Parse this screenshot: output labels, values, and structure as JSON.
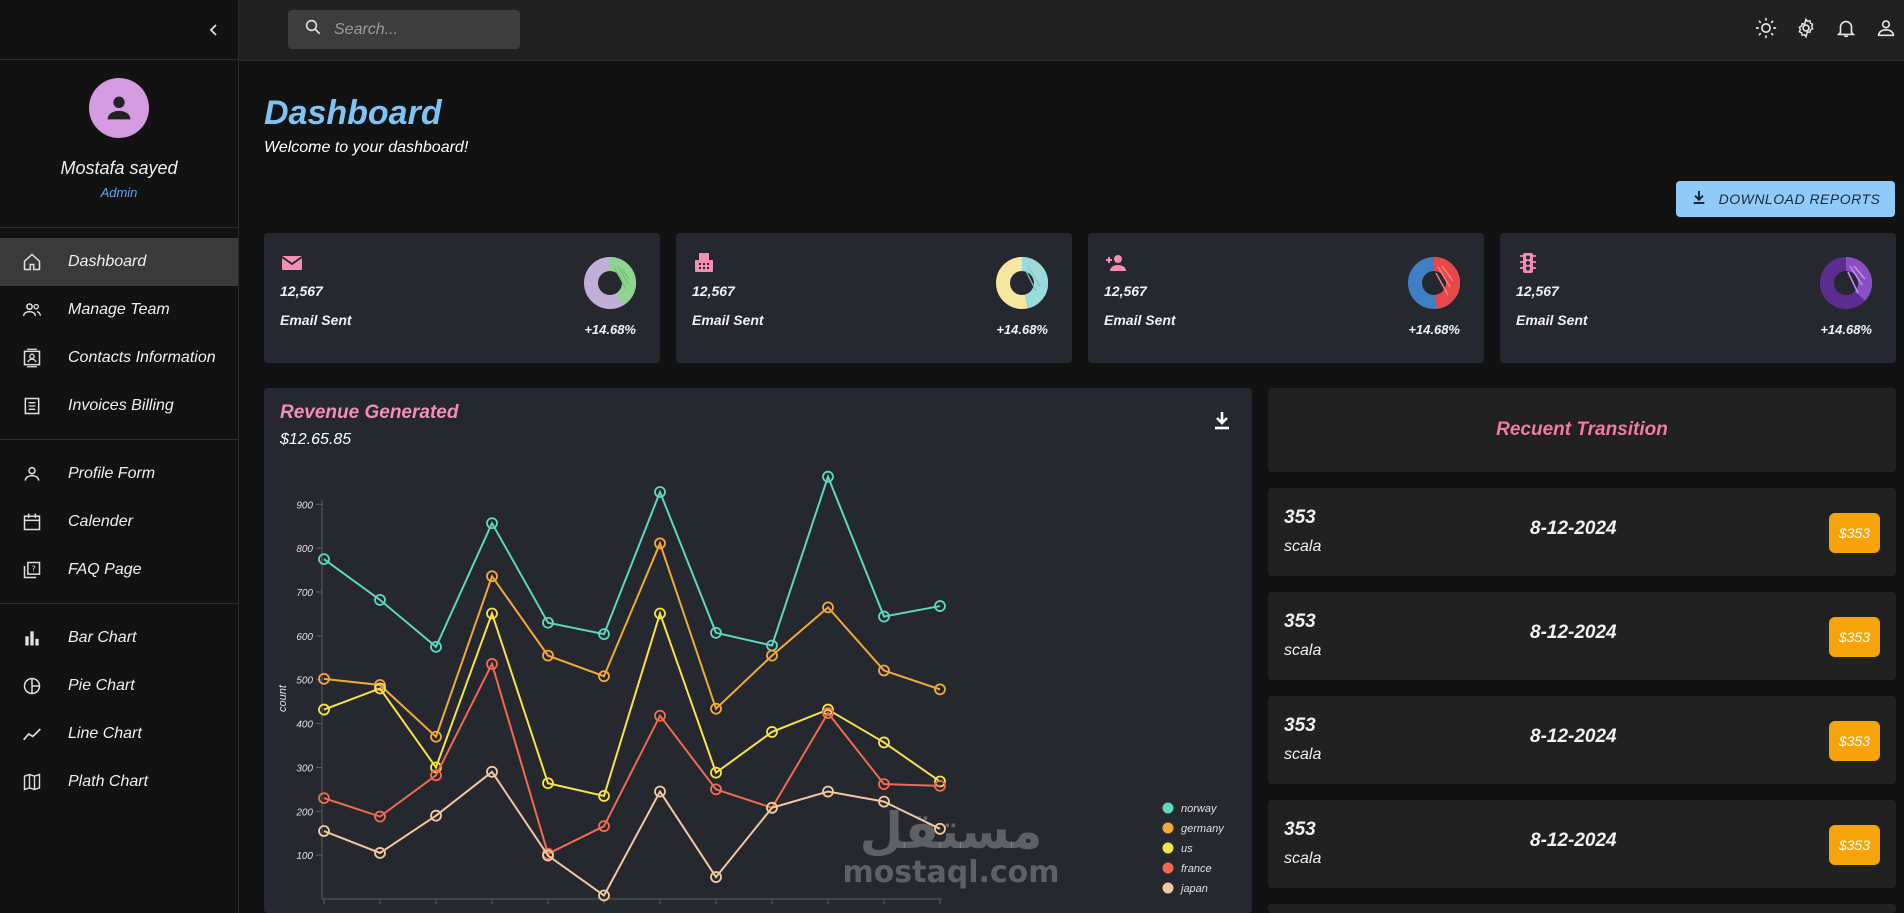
{
  "topbar": {
    "search_placeholder": "Search..."
  },
  "profile": {
    "name": "Mostafa sayed",
    "role": "Admin"
  },
  "nav": {
    "groups": [
      [
        {
          "label": "Dashboard"
        },
        {
          "label": "Manage Team"
        },
        {
          "label": "Contacts Information"
        },
        {
          "label": "Invoices Billing"
        }
      ],
      [
        {
          "label": "Profile Form"
        },
        {
          "label": "Calender"
        },
        {
          "label": "FAQ Page"
        }
      ],
      [
        {
          "label": "Bar Chart"
        },
        {
          "label": "Pie Chart"
        },
        {
          "label": "Line Chart"
        },
        {
          "label": "Plath Chart"
        }
      ]
    ]
  },
  "header": {
    "title": "Dashboard",
    "subtitle": "Welcome to your dashboard!",
    "download_label": "DOWNLOAD REPORTS"
  },
  "stats": [
    {
      "value": "12,567",
      "label": "Email Sent",
      "change": "+14.68%",
      "icon": "email-icon",
      "colors": [
        "#c0b0d8",
        "#8fd48f"
      ]
    },
    {
      "value": "12,567",
      "label": "Email Sent",
      "change": "+14.68%",
      "icon": "fax-icon",
      "colors": [
        "#f5e7a0",
        "#9ad9dc"
      ]
    },
    {
      "value": "12,567",
      "label": "Email Sent",
      "change": "+14.68%",
      "icon": "person-add-icon",
      "colors": [
        "#3f7fc5",
        "#e84848"
      ]
    },
    {
      "value": "12,567",
      "label": "Email Sent",
      "change": "+14.68%",
      "icon": "traffic-icon",
      "colors": [
        "#5c2d91",
        "#8a4fc0"
      ]
    }
  ],
  "revenue": {
    "title": "Revenue Generated",
    "amount": "$12.65.85"
  },
  "transactions": {
    "title": "Recuent Transition",
    "rows": [
      {
        "id": "353",
        "user": "scala",
        "date": "8-12-2024",
        "cost": "$353"
      },
      {
        "id": "353",
        "user": "scala",
        "date": "8-12-2024",
        "cost": "$353"
      },
      {
        "id": "353",
        "user": "scala",
        "date": "8-12-2024",
        "cost": "$353"
      },
      {
        "id": "353",
        "user": "scala",
        "date": "8-12-2024",
        "cost": "$353"
      }
    ]
  },
  "watermark": {
    "text_ar": "مستقل",
    "text_en": "mostaql.com"
  },
  "chart_data": {
    "type": "line",
    "ylabel": "count",
    "ylim": [
      0,
      960
    ],
    "yticks": [
      100,
      200,
      300,
      400,
      500,
      600,
      700,
      800,
      900
    ],
    "legend_position": "bottom-right",
    "series": [
      {
        "name": "norway",
        "color": "#5ed6c0",
        "values": [
          775,
          682,
          575,
          857,
          630,
          604,
          928,
          607,
          578,
          963,
          644,
          668
        ]
      },
      {
        "name": "germany",
        "color": "#f3a83a",
        "values": [
          502,
          488,
          370,
          736,
          555,
          508,
          811,
          434,
          555,
          665,
          521,
          478
        ]
      },
      {
        "name": "us",
        "color": "#f6e24a",
        "values": [
          432,
          480,
          300,
          651,
          264,
          235,
          651,
          288,
          381,
          432,
          357,
          268
        ]
      },
      {
        "name": "france",
        "color": "#f06a52",
        "values": [
          230,
          188,
          282,
          536,
          103,
          166,
          418,
          250,
          208,
          424,
          262,
          258
        ]
      },
      {
        "name": "japan",
        "color": "#f3c8a0",
        "values": [
          155,
          105,
          190,
          290,
          99,
          8,
          245,
          50,
          208,
          245,
          222,
          160
        ]
      }
    ]
  }
}
